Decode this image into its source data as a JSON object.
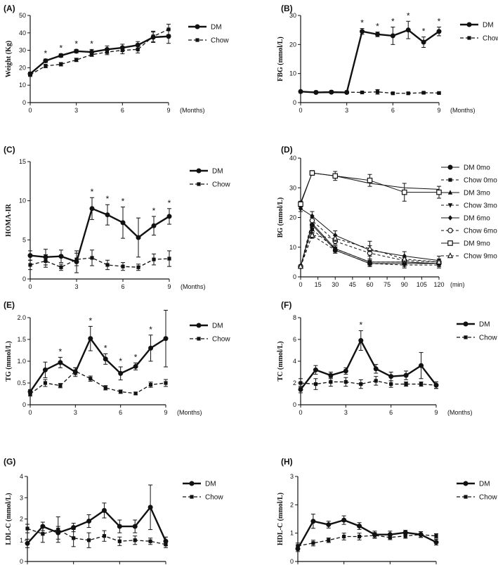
{
  "chart_data": [
    {
      "letter": "(A)",
      "type": "line",
      "xlabel": "",
      "xunit": "(Months)",
      "ylabel": "Weight (Kg)",
      "xlim": [
        0,
        9
      ],
      "ylim": [
        0,
        50
      ],
      "xticks": [
        0,
        3,
        6,
        9
      ],
      "yticks": [
        0,
        10,
        20,
        30,
        40,
        50
      ],
      "series": [
        {
          "name": "DM",
          "style": "dm",
          "x": [
            0,
            1,
            2,
            3,
            4,
            5,
            6,
            7,
            8,
            9
          ],
          "values": [
            16.5,
            24,
            27,
            29.5,
            29,
            30.5,
            31.5,
            33,
            37.5,
            38
          ],
          "err": [
            1,
            1,
            1,
            1,
            1.5,
            2,
            2,
            2,
            3,
            4
          ]
        },
        {
          "name": "Chow",
          "style": "chow",
          "x": [
            0,
            1,
            2,
            3,
            4,
            5,
            6,
            7,
            8,
            9
          ],
          "values": [
            16,
            21,
            22,
            24.5,
            27.5,
            29,
            30,
            30.5,
            38,
            42
          ],
          "err": [
            1,
            1,
            1,
            1,
            1,
            1.5,
            2,
            2,
            3,
            3
          ]
        }
      ],
      "sig": [
        {
          "x": 1,
          "text": "*"
        },
        {
          "x": 2,
          "text": "*"
        },
        {
          "x": 3,
          "text": "*"
        },
        {
          "x": 4,
          "text": "*"
        }
      ]
    },
    {
      "letter": "(B)",
      "type": "line",
      "xlabel": "",
      "xunit": "(Months)",
      "ylabel": "FBG (mmol/L)",
      "xlim": [
        0,
        9
      ],
      "ylim": [
        0,
        30
      ],
      "xticks": [
        0,
        3,
        6,
        9
      ],
      "yticks": [
        0,
        10,
        20,
        30
      ],
      "series": [
        {
          "name": "DM",
          "style": "dm",
          "x": [
            0,
            1,
            2,
            3,
            4,
            5,
            6,
            7,
            8,
            9
          ],
          "values": [
            3.8,
            3.5,
            3.6,
            3.5,
            24.5,
            23.5,
            23,
            25,
            20.8,
            24.5
          ],
          "err": [
            0.3,
            0.3,
            0.3,
            0.3,
            1,
            0.8,
            3,
            3,
            1.8,
            1.5
          ]
        },
        {
          "name": "Chow",
          "style": "chow",
          "x": [
            0,
            1,
            2,
            3,
            4,
            5,
            6,
            7,
            8,
            9
          ],
          "values": [
            3.8,
            3.6,
            3.7,
            3.6,
            3.5,
            3.7,
            3.2,
            3.2,
            3.4,
            3.3
          ],
          "err": [
            0.3,
            0.3,
            0.3,
            0.3,
            0.3,
            0.8,
            0.3,
            0.3,
            0.3,
            0.3
          ]
        }
      ],
      "sig": [
        {
          "x": 4,
          "text": "*"
        },
        {
          "x": 5,
          "text": "*"
        },
        {
          "x": 6,
          "text": "*"
        },
        {
          "x": 7,
          "text": "*"
        },
        {
          "x": 8,
          "text": "*"
        },
        {
          "x": 9,
          "text": "*"
        }
      ]
    },
    {
      "letter": "(C)",
      "type": "line",
      "xlabel": "",
      "xunit": "(Months)",
      "ylabel": "HOMA-IR",
      "xlim": [
        0,
        9
      ],
      "ylim": [
        0,
        15
      ],
      "xticks": [
        0,
        3,
        6,
        9
      ],
      "yticks": [
        0,
        5,
        10,
        15
      ],
      "series": [
        {
          "name": "DM",
          "style": "dm",
          "x": [
            0,
            1,
            2,
            3,
            4,
            5,
            6,
            7,
            8,
            9
          ],
          "values": [
            3,
            2.8,
            2.9,
            2.2,
            9,
            8.2,
            7.2,
            5.3,
            6.8,
            8
          ],
          "err": [
            0.6,
            1,
            0.8,
            1.4,
            1.4,
            1.3,
            2,
            2.5,
            1.2,
            1
          ]
        },
        {
          "name": "Chow",
          "style": "chow",
          "x": [
            0,
            1,
            2,
            3,
            4,
            5,
            6,
            7,
            8,
            9
          ],
          "values": [
            1.8,
            2.3,
            1.5,
            2.5,
            2.7,
            1.8,
            1.6,
            1.5,
            2.5,
            2.6
          ],
          "err": [
            0.6,
            0.8,
            0.4,
            0.8,
            1,
            0.6,
            0.5,
            0.4,
            0.7,
            1
          ]
        }
      ],
      "sig": [
        {
          "x": 4,
          "text": "*"
        },
        {
          "x": 5,
          "text": "*"
        },
        {
          "x": 6,
          "text": "*"
        },
        {
          "x": 8,
          "text": "*"
        },
        {
          "x": 9,
          "text": "*"
        }
      ]
    },
    {
      "letter": "(D)",
      "type": "line",
      "xlabel": "",
      "xunit": "(min)",
      "ylabel": "BG (mmol/L)",
      "xlim": [
        0,
        120
      ],
      "ylim": [
        0,
        40
      ],
      "xticks": [
        0,
        15,
        30,
        45,
        60,
        75,
        90,
        105,
        120
      ],
      "yticks": [
        0,
        10,
        20,
        30,
        40
      ],
      "series": [
        {
          "name": "DM 0mo",
          "style": "solid",
          "marker": "circle",
          "x": [
            0,
            10,
            30,
            60,
            90,
            120
          ],
          "values": [
            3.5,
            17.5,
            9,
            4.5,
            4.5,
            4.5
          ],
          "err": [
            0.5,
            1,
            1,
            1,
            1,
            1
          ]
        },
        {
          "name": "Chow 0mo",
          "style": "dash",
          "marker": "square",
          "x": [
            0,
            10,
            30,
            60,
            90,
            120
          ],
          "values": [
            3.5,
            16,
            9.5,
            5,
            5,
            4.5
          ],
          "err": [
            0.5,
            1,
            1,
            1,
            1,
            1
          ]
        },
        {
          "name": "DM 3mo",
          "style": "solid",
          "marker": "triangle",
          "x": [
            0,
            10,
            30,
            60,
            90,
            120
          ],
          "values": [
            3.5,
            18,
            9.5,
            5,
            5,
            4.5
          ],
          "err": [
            0.5,
            1,
            1,
            1,
            1,
            1
          ]
        },
        {
          "name": "Chow 3mo",
          "style": "dash",
          "marker": "triangle-down",
          "x": [
            0,
            10,
            30,
            60,
            90,
            120
          ],
          "values": [
            3.5,
            14,
            9,
            4.5,
            4,
            4
          ],
          "err": [
            0.5,
            1,
            1,
            1,
            1,
            1
          ]
        },
        {
          "name": "DM 6mo",
          "style": "solid",
          "marker": "diamond",
          "x": [
            0,
            10,
            30,
            60,
            90,
            120
          ],
          "values": [
            23,
            20.5,
            14,
            9,
            7,
            5.5
          ],
          "err": [
            1,
            1.5,
            1.5,
            3,
            1.5,
            1.5
          ]
        },
        {
          "name": "Chow 6mo",
          "style": "dash",
          "marker": "circle-open",
          "x": [
            0,
            10,
            30,
            60,
            90,
            120
          ],
          "values": [
            3.5,
            19,
            12,
            8,
            5.5,
            5
          ],
          "err": [
            0.5,
            1,
            1,
            1,
            1,
            1
          ]
        },
        {
          "name": "DM 9mo",
          "style": "solid",
          "marker": "square-open",
          "x": [
            0,
            10,
            30,
            60,
            90,
            120
          ],
          "values": [
            24.5,
            35,
            34,
            32.5,
            28.5,
            28.5
          ],
          "err": [
            1,
            0.8,
            1.5,
            2,
            3,
            2
          ]
        },
        {
          "name": "Chow 9mo",
          "style": "dash",
          "marker": "triangle-open",
          "x": [
            0,
            10,
            30,
            60,
            90,
            120
          ],
          "values": [
            3.5,
            14,
            13,
            9.5,
            6,
            5
          ],
          "err": [
            0.5,
            1,
            1,
            1,
            1,
            1
          ]
        }
      ],
      "extra_series": {
        "name": "DM 9mo (upper)",
        "x": [
          0,
          10,
          30,
          60,
          90,
          120
        ],
        "values": [
          25,
          35,
          34,
          31.5,
          30,
          29.5
        ]
      },
      "sig": []
    },
    {
      "letter": "(E)",
      "type": "line",
      "xlabel": "",
      "xunit": "(Months)",
      "ylabel": "TG (mmol/L)",
      "xlim": [
        0,
        9
      ],
      "ylim": [
        0,
        2.0
      ],
      "xticks": [
        0,
        3,
        6,
        9
      ],
      "yticks": [
        0,
        0.5,
        1.0,
        1.5,
        2.0
      ],
      "ytickLabels": [
        "0",
        "0.5",
        "1.0",
        "1.5",
        "2.0"
      ],
      "series": [
        {
          "name": "DM",
          "style": "dm",
          "x": [
            0,
            1,
            2,
            3,
            4,
            5,
            6,
            7,
            8,
            9
          ],
          "values": [
            0.3,
            0.8,
            0.97,
            0.75,
            1.52,
            1.05,
            0.72,
            0.88,
            1.3,
            1.52
          ],
          "err": [
            0.05,
            0.18,
            0.12,
            0.1,
            0.28,
            0.12,
            0.15,
            0.08,
            0.3,
            0.65
          ]
        },
        {
          "name": "Chow",
          "style": "chow",
          "x": [
            0,
            1,
            2,
            3,
            4,
            5,
            6,
            7,
            8,
            9
          ],
          "values": [
            0.25,
            0.5,
            0.44,
            0.77,
            0.6,
            0.39,
            0.3,
            0.26,
            0.46,
            0.5
          ],
          "err": [
            0.05,
            0.08,
            0.05,
            0.08,
            0.06,
            0.05,
            0.04,
            0.03,
            0.06,
            0.08
          ]
        }
      ],
      "sig": [
        {
          "x": 2,
          "text": "*"
        },
        {
          "x": 4,
          "text": "*"
        },
        {
          "x": 5,
          "text": "*"
        },
        {
          "x": 6,
          "text": "*"
        },
        {
          "x": 7,
          "text": "*"
        },
        {
          "x": 8,
          "text": "*"
        }
      ]
    },
    {
      "letter": "(F)",
      "type": "line",
      "xlabel": "",
      "xunit": "(Months)",
      "ylabel": "TC (mmol/L)",
      "xlim": [
        0,
        9
      ],
      "ylim": [
        0,
        8
      ],
      "xticks": [
        0,
        3,
        6,
        9
      ],
      "yticks": [
        0,
        2,
        4,
        6,
        8
      ],
      "series": [
        {
          "name": "DM",
          "style": "dm",
          "x": [
            0,
            1,
            2,
            3,
            4,
            5,
            6,
            7,
            8,
            9
          ],
          "values": [
            1.4,
            3.2,
            2.7,
            3.1,
            5.9,
            3.3,
            2.6,
            2.7,
            3.6,
            1.8
          ],
          "err": [
            0.3,
            0.4,
            0.3,
            0.3,
            0.9,
            0.4,
            0.4,
            0.4,
            1.2,
            0.3
          ]
        },
        {
          "name": "Chow",
          "style": "chow",
          "x": [
            0,
            1,
            2,
            3,
            4,
            5,
            6,
            7,
            8,
            9
          ],
          "values": [
            2.0,
            1.9,
            2.1,
            2.1,
            1.9,
            2.2,
            1.9,
            1.9,
            1.9,
            1.8
          ],
          "err": [
            0.4,
            0.5,
            0.4,
            0.4,
            0.4,
            0.4,
            0.3,
            0.2,
            0.2,
            0.3
          ]
        }
      ],
      "sig": [
        {
          "x": 4,
          "text": "*"
        }
      ]
    },
    {
      "letter": "(G)",
      "type": "line",
      "xlabel": "",
      "xunit": "(Months)",
      "ylabel": "LDL-C (mmol/L)",
      "xlim": [
        0,
        9
      ],
      "ylim": [
        0,
        4
      ],
      "xticks": [
        0,
        3,
        6,
        9
      ],
      "yticks": [
        0,
        1,
        2,
        3,
        4
      ],
      "series": [
        {
          "name": "DM",
          "style": "dm",
          "x": [
            0,
            1,
            2,
            3,
            4,
            5,
            6,
            7,
            8,
            9
          ],
          "values": [
            0.85,
            1.65,
            1.35,
            1.6,
            1.9,
            2.4,
            1.65,
            1.65,
            2.55,
            0.95
          ],
          "err": [
            0.2,
            0.2,
            0.3,
            0.2,
            0.3,
            0.35,
            0.3,
            0.3,
            1.05,
            0.2
          ]
        },
        {
          "name": "Chow",
          "style": "chow",
          "x": [
            0,
            1,
            2,
            3,
            4,
            5,
            6,
            7,
            8,
            9
          ],
          "values": [
            1.55,
            1.3,
            1.5,
            1.1,
            1.0,
            1.2,
            0.95,
            1.0,
            0.95,
            0.8
          ],
          "err": [
            0.2,
            0.4,
            0.6,
            0.4,
            0.35,
            0.25,
            0.2,
            0.2,
            0.15,
            0.15
          ]
        }
      ],
      "sig": []
    },
    {
      "letter": "(H)",
      "type": "line",
      "xlabel": "",
      "xunit": "(Months)",
      "ylabel": "HDL-C (mmol/L)",
      "xlim": [
        0,
        9
      ],
      "ylim": [
        0,
        3
      ],
      "xticks": [
        0,
        3,
        6,
        9
      ],
      "yticks": [
        0,
        1,
        2,
        3
      ],
      "series": [
        {
          "name": "DM",
          "style": "dm",
          "x": [
            0,
            1,
            2,
            3,
            4,
            5,
            6,
            7,
            8,
            9
          ],
          "values": [
            0.45,
            1.42,
            1.3,
            1.46,
            1.25,
            0.95,
            0.95,
            1.02,
            0.95,
            0.68
          ],
          "err": [
            0.1,
            0.25,
            0.12,
            0.15,
            0.12,
            0.12,
            0.12,
            0.08,
            0.1,
            0.1
          ]
        },
        {
          "name": "Chow",
          "style": "chow",
          "x": [
            0,
            1,
            2,
            3,
            4,
            5,
            6,
            7,
            8,
            9
          ],
          "values": [
            0.55,
            0.65,
            0.75,
            0.88,
            0.88,
            0.92,
            0.85,
            0.9,
            0.95,
            0.9
          ],
          "err": [
            0.1,
            0.1,
            0.08,
            0.12,
            0.12,
            0.1,
            0.08,
            0.08,
            0.1,
            0.08
          ]
        }
      ],
      "sig": []
    }
  ]
}
